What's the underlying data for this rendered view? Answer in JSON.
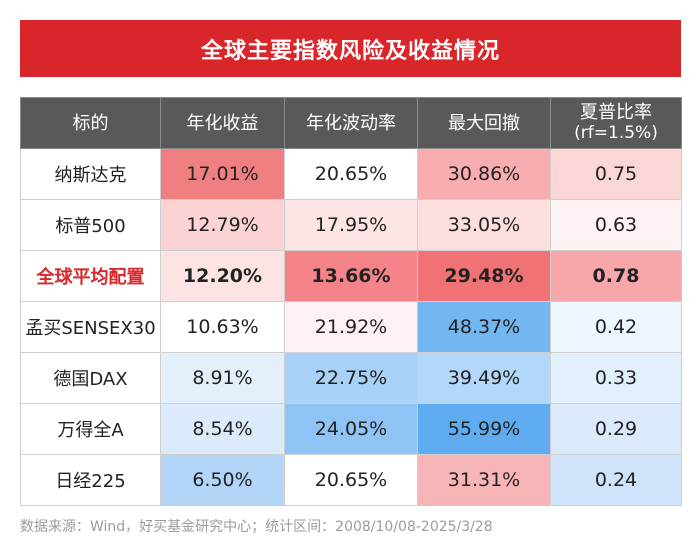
{
  "title": "全球主要指数风险及收益情况",
  "chart_data": {
    "type": "table",
    "columns": [
      "标的",
      "年化收益",
      "年化波动率",
      "最大回撤",
      "夏普比率"
    ],
    "sharpe_note": "(rf=1.5%)",
    "rows": [
      {
        "name": "纳斯达克",
        "return": "17.01%",
        "vol": "20.65%",
        "dd": "30.86%",
        "sharpe": "0.75",
        "highlight": false
      },
      {
        "name": "标普500",
        "return": "12.79%",
        "vol": "17.95%",
        "dd": "33.05%",
        "sharpe": "0.63",
        "highlight": false
      },
      {
        "name": "全球平均配置",
        "return": "12.20%",
        "vol": "13.66%",
        "dd": "29.48%",
        "sharpe": "0.78",
        "highlight": true
      },
      {
        "name": "孟买SENSEX30",
        "return": "10.63%",
        "vol": "21.92%",
        "dd": "48.37%",
        "sharpe": "0.42",
        "highlight": false
      },
      {
        "name": "德国DAX",
        "return": "8.91%",
        "vol": "22.75%",
        "dd": "39.49%",
        "sharpe": "0.33",
        "highlight": false
      },
      {
        "name": "万得全A",
        "return": "8.54%",
        "vol": "24.05%",
        "dd": "55.99%",
        "sharpe": "0.29",
        "highlight": false
      },
      {
        "name": "日经225",
        "return": "6.50%",
        "vol": "20.65%",
        "dd": "31.31%",
        "sharpe": "0.24",
        "highlight": false
      }
    ],
    "colors": {
      "return": [
        "#f07f82",
        "#fbd3d4",
        "#fde3e3",
        "#ffffff",
        "#e3f0fc",
        "#dcebfb",
        "#b3d6f8"
      ],
      "vol": [
        "#ffffff",
        "#fde5e5",
        "#f5848a",
        "#fef1f1",
        "#a9d1f7",
        "#8fc3f5",
        "#ffffff"
      ],
      "dd": [
        "#f8aeb1",
        "#fcdedf",
        "#f07275",
        "#72b7f2",
        "#b2d7f8",
        "#5fadf0",
        "#f7b5b8"
      ],
      "sharpe": [
        "#fad6d7",
        "#fef2f2",
        "#f7a6a9",
        "#eef6fd",
        "#e2effc",
        "#dbeafb",
        "#cfe4fa"
      ]
    }
  },
  "footer": "数据来源：Wind，好买基金研究中心；统计区间：2008/10/08-2025/3/28"
}
